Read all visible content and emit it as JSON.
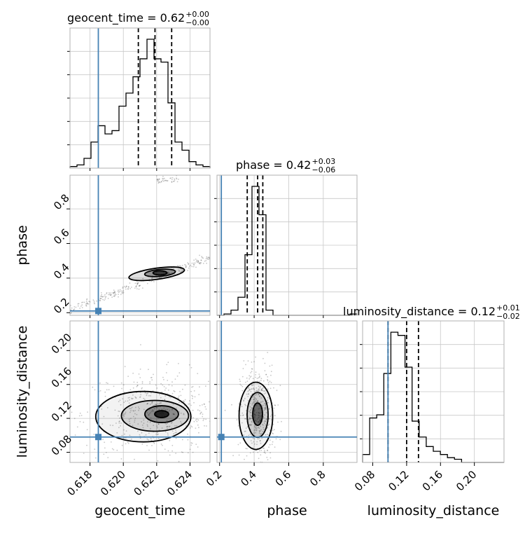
{
  "colors": {
    "truth": "#4682b4",
    "hist": "#000000",
    "grid": "#c8c8c8",
    "points": "#000000"
  },
  "chart_data": {
    "type": "corner",
    "parameters": [
      "geocent_time",
      "phase",
      "luminosity_distance"
    ],
    "truths": {
      "geocent_time": 0.6185,
      "phase": 0.21,
      "luminosity_distance": 0.098
    },
    "ranges": {
      "geocent_time": [
        0.6168,
        0.6252
      ],
      "phase": [
        0.185,
        0.995
      ],
      "luminosity_distance": [
        0.068,
        0.235
      ]
    },
    "ticks": {
      "geocent_time": {
        "values": [
          0.618,
          0.62,
          0.622,
          0.624
        ],
        "labels": [
          "0.618",
          "0.620",
          "0.622",
          "0.624"
        ]
      },
      "phase": {
        "values": [
          0.2,
          0.4,
          0.6,
          0.8
        ],
        "labels": [
          "0.2",
          "0.4",
          "0.6",
          "0.8"
        ]
      },
      "luminosity_distance": {
        "values": [
          0.08,
          0.12,
          0.16,
          0.2
        ],
        "labels": [
          "0.08",
          "0.12",
          "0.16",
          "0.20"
        ]
      }
    },
    "titles": {
      "geocent_time": {
        "base": "geocent_time = 0.62",
        "sup": "+0.00",
        "sub": "−0.00"
      },
      "phase": {
        "base": "phase = 0.42",
        "sup": "+0.03",
        "sub": "−0.06"
      },
      "luminosity_distance": {
        "base": "luminosity_distance = 0.12",
        "sup": "+0.01",
        "sub": "−0.02"
      }
    },
    "histograms": {
      "geocent_time": {
        "edges_start": 0.6168,
        "bin_width": 0.00042,
        "counts": [
          1,
          2,
          6,
          16,
          26,
          21,
          23,
          38,
          46,
          56,
          67,
          79,
          67,
          65,
          40,
          16,
          11,
          4,
          2,
          1
        ],
        "quantiles": [
          0.6209,
          0.6219,
          0.6229
        ]
      },
      "phase": {
        "edges_start": 0.185,
        "bin_width": 0.0405,
        "counts": [
          0,
          1,
          4,
          14,
          47,
          100,
          78,
          4,
          0,
          0,
          0,
          0,
          0,
          0,
          0,
          0,
          0,
          0,
          0,
          1
        ],
        "quantiles": [
          0.36,
          0.42,
          0.45
        ]
      },
      "luminosity_distance": {
        "edges_start": 0.068,
        "bin_width": 0.00835,
        "counts": [
          5,
          28,
          30,
          56,
          82,
          80,
          60,
          26,
          16,
          10,
          7,
          5,
          3,
          2,
          0,
          0,
          0,
          0,
          0,
          0
        ],
        "quantiles": [
          0.098,
          0.12,
          0.134
        ]
      }
    },
    "joint": [
      {
        "x": "geocent_time",
        "y": "phase",
        "relation": "diagonal band from (0.6168, 0.215) to (0.6252, 0.52); sparse second band near phase 0.97",
        "mode": [
          0.6222,
          0.43
        ]
      },
      {
        "x": "geocent_time",
        "y": "luminosity_distance",
        "mode": [
          0.6223,
          0.125
        ]
      },
      {
        "x": "phase",
        "y": "luminosity_distance",
        "mode": [
          0.42,
          0.125
        ]
      }
    ]
  }
}
